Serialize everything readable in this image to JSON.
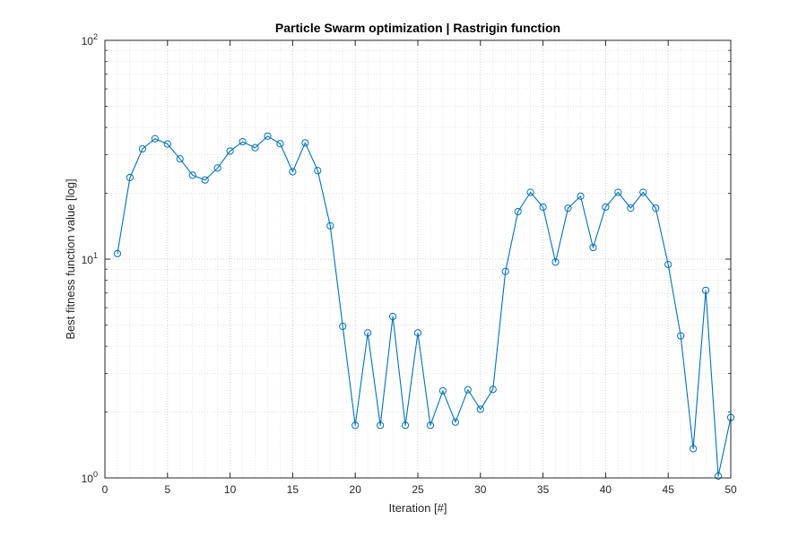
{
  "chart_data": {
    "type": "line",
    "title": "Particle Swarm optimization | Rastrigin function",
    "xlabel": "Iteration [#]",
    "ylabel": "Best fitness function value [log]",
    "xlim": [
      0,
      50
    ],
    "ylim": [
      1,
      100
    ],
    "yscale": "log",
    "grid": true,
    "minor_grid": true,
    "marker": "circle",
    "line_color": "#0072BD",
    "xticks": [
      0,
      5,
      10,
      15,
      20,
      25,
      30,
      35,
      40,
      45,
      50
    ],
    "xtick_labels": [
      "0",
      "5",
      "10",
      "15",
      "20",
      "25",
      "30",
      "35",
      "40",
      "45",
      "50"
    ],
    "yticks": [
      {
        "value": 1,
        "base": "10",
        "exp": "0"
      },
      {
        "value": 10,
        "base": "10",
        "exp": "1"
      },
      {
        "value": 100,
        "base": "10",
        "exp": "2"
      }
    ],
    "series": [
      {
        "x": [
          1,
          2,
          3,
          4,
          5,
          6,
          7,
          8,
          9,
          10,
          11,
          12,
          13,
          14,
          15,
          16,
          17,
          18,
          19,
          20,
          21,
          22,
          23,
          24,
          25,
          26,
          27,
          28,
          29,
          30,
          31,
          32,
          33,
          34,
          35,
          36,
          37,
          38,
          39,
          40,
          41,
          42,
          43,
          44,
          45,
          46,
          47,
          48,
          49,
          50
        ],
        "values": [
          10.6,
          23.6,
          31.9,
          35.5,
          33.6,
          28.7,
          24.2,
          23.0,
          26.1,
          31.2,
          34.4,
          32.3,
          36.5,
          33.7,
          25.1,
          34.0,
          25.4,
          14.2,
          4.93,
          1.74,
          4.6,
          1.74,
          5.47,
          1.74,
          4.6,
          1.74,
          2.5,
          1.8,
          2.53,
          2.06,
          2.54,
          8.78,
          16.5,
          20.2,
          17.3,
          9.7,
          17.1,
          19.4,
          11.3,
          17.3,
          20.2,
          17.1,
          20.2,
          17.1,
          9.45,
          4.46,
          1.36,
          7.2,
          1.02,
          1.89
        ]
      }
    ]
  }
}
